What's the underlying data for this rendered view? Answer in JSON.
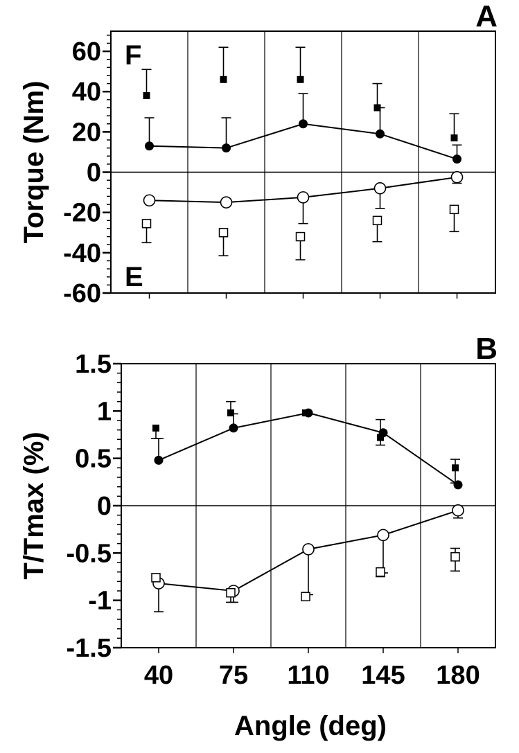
{
  "chart_data": [
    {
      "type": "line",
      "panel_label": "A",
      "ylabel": "Torque (Nm)",
      "xlabel": "",
      "region_labels": {
        "top": "F",
        "bottom": "E"
      },
      "categories": [
        "40",
        "75",
        "110",
        "145",
        "180"
      ],
      "ylim": [
        -60,
        70
      ],
      "yticks": [
        60,
        40,
        20,
        0,
        -20,
        -40,
        -60
      ],
      "ytick_labels": [
        "60",
        "40",
        "20",
        "0",
        "-20",
        "-40",
        "-60"
      ],
      "grid": "vertical category dividers",
      "series": [
        {
          "marker": "filled-square",
          "connected": false,
          "values": [
            38,
            46,
            46,
            32,
            17
          ],
          "error_up": [
            13,
            16,
            16,
            12,
            12
          ],
          "error_down": [
            0,
            0,
            0,
            0,
            0
          ]
        },
        {
          "marker": "filled-circle",
          "connected": true,
          "values": [
            13,
            12,
            24,
            19,
            6.5
          ],
          "error_up": [
            14,
            15,
            15,
            13,
            7
          ],
          "error_down": [
            0,
            0,
            0,
            0,
            0
          ]
        },
        {
          "marker": "open-circle",
          "connected": true,
          "values": [
            -14,
            -15,
            -12.5,
            -8,
            -2.5
          ],
          "error_up": [
            0,
            0,
            0,
            0,
            0
          ],
          "error_down": [
            0,
            0,
            13,
            10,
            3
          ]
        },
        {
          "marker": "open-square",
          "connected": false,
          "values": [
            -25.5,
            -30,
            -32,
            -24,
            -18.5
          ],
          "error_up": [
            0,
            0,
            0,
            0,
            0
          ],
          "error_down": [
            9.5,
            11.5,
            11.5,
            10.5,
            11
          ]
        }
      ]
    },
    {
      "type": "line",
      "panel_label": "B",
      "ylabel": "T/Tmax (%)",
      "xlabel": "Angle (deg)",
      "categories": [
        "40",
        "75",
        "110",
        "145",
        "180"
      ],
      "ylim": [
        -1.5,
        1.5
      ],
      "yticks": [
        1.5,
        1,
        0.5,
        0,
        -0.5,
        -1,
        -1.5
      ],
      "ytick_labels": [
        "1.5",
        "1",
        "0.5",
        "0",
        "-0.5",
        "-1",
        "-1.5"
      ],
      "grid": "vertical category dividers",
      "series": [
        {
          "marker": "filled-square",
          "connected": false,
          "values": [
            0.82,
            0.98,
            0.98,
            0.72,
            0.4
          ],
          "error_up": [
            0,
            0.12,
            0,
            0.19,
            0.09
          ],
          "error_down": [
            0.11,
            0,
            0,
            0.08,
            0.16
          ]
        },
        {
          "marker": "filled-circle",
          "connected": true,
          "values": [
            0.48,
            0.82,
            0.98,
            0.77,
            0.22
          ],
          "error_up": [
            0.23,
            0.15,
            0,
            0,
            0
          ],
          "error_down": [
            0,
            0,
            0,
            0,
            0
          ]
        },
        {
          "marker": "open-circle",
          "connected": true,
          "values": [
            -0.82,
            -0.9,
            -0.46,
            -0.31,
            -0.05
          ],
          "error_up": [
            0,
            0,
            0,
            0,
            0
          ],
          "error_down": [
            0.3,
            0.12,
            0.48,
            0.4,
            0.08
          ]
        },
        {
          "marker": "open-square",
          "connected": false,
          "values": [
            -0.76,
            -0.92,
            -0.96,
            -0.7,
            -0.54
          ],
          "error_up": [
            0,
            0,
            0,
            0,
            0.09
          ],
          "error_down": [
            0,
            0.1,
            0,
            0.05,
            0.15
          ]
        }
      ]
    }
  ]
}
